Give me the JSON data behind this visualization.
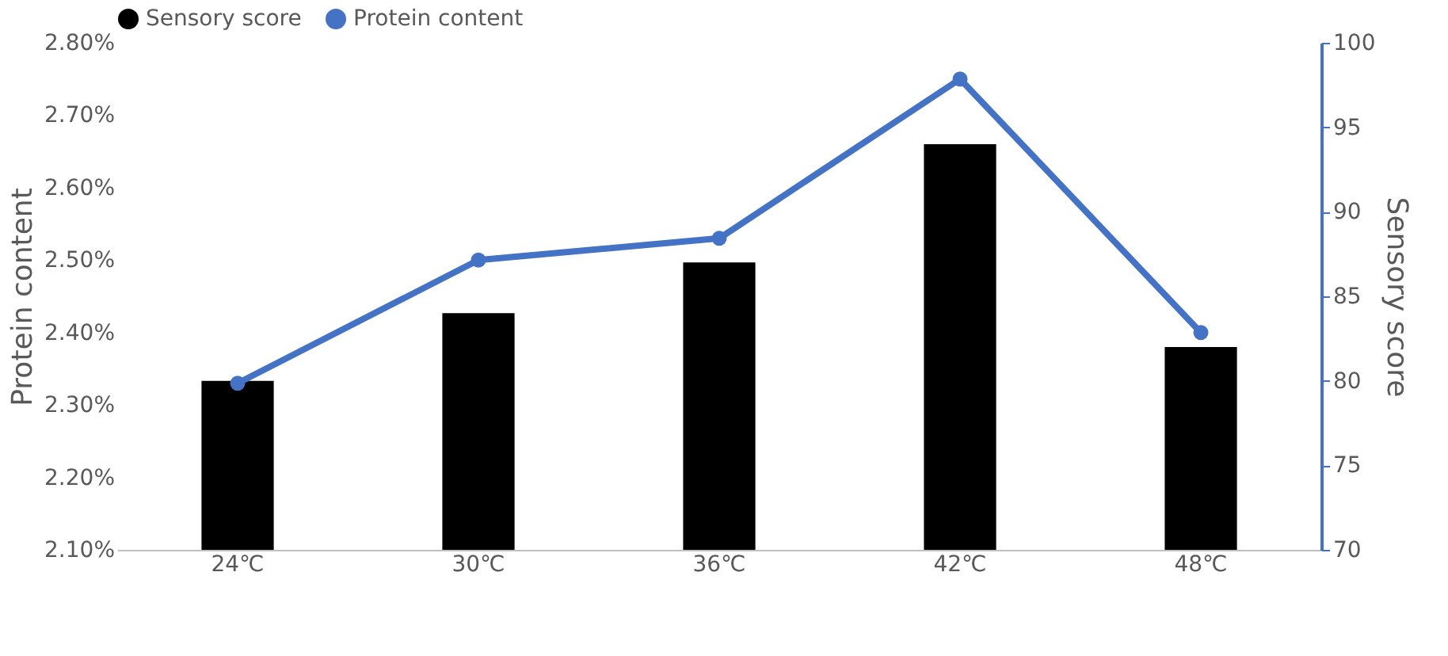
{
  "chart_data": {
    "type": "bar",
    "categories": [
      "24℃",
      "30℃",
      "36℃",
      "42℃",
      "48℃"
    ],
    "ylabel": "Protein content",
    "y2label": "Sensory score",
    "series": [
      {
        "name": "Sensory score",
        "axis": "y2",
        "color": "#000000",
        "values": [
          80,
          84,
          87,
          94,
          82
        ]
      },
      {
        "name": "Protein content",
        "type": "line",
        "axis": "y",
        "color": "#4472c4",
        "marker": "circle",
        "values": [
          2.33,
          2.5,
          2.53,
          2.75,
          2.4
        ]
      }
    ],
    "ylim": [
      2.1,
      2.8
    ],
    "yticks": [
      {
        "value": 2.1,
        "label": "2.10%"
      },
      {
        "value": 2.2,
        "label": "2.20%"
      },
      {
        "value": 2.3,
        "label": "2.30%"
      },
      {
        "value": 2.4,
        "label": "2.40%"
      },
      {
        "value": 2.5,
        "label": "2.50%"
      },
      {
        "value": 2.6,
        "label": "2.60%"
      },
      {
        "value": 2.7,
        "label": "2.70%"
      },
      {
        "value": 2.8,
        "label": "2.80%"
      }
    ],
    "y2lim": [
      70,
      100
    ],
    "y2ticks": [
      70,
      75,
      80,
      85,
      90,
      95,
      100
    ],
    "grid": false,
    "legend": "top"
  }
}
